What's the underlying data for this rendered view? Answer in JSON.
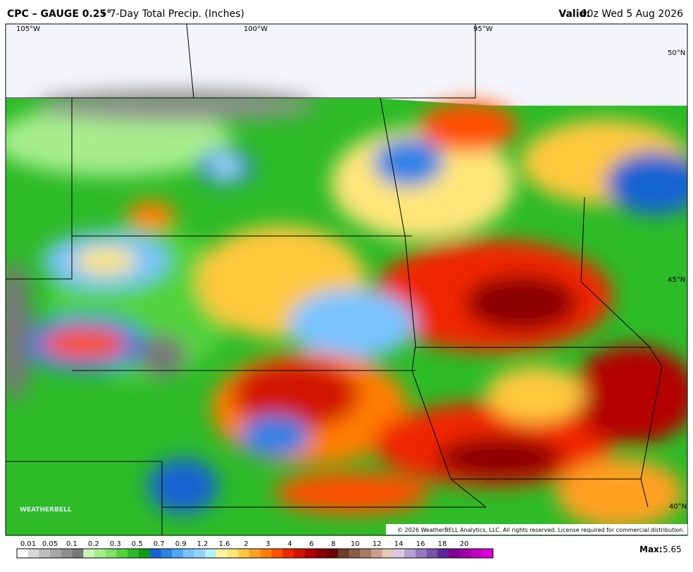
{
  "header": {
    "product": "CPC – GAUGE 0.25°",
    "subtitle": "• 7-Day Total Precip. (Inches)",
    "valid_label": "Valid:",
    "valid_value": "00z Wed 5 Aug 2026"
  },
  "map": {
    "lon_labels": [
      "105°W",
      "100°W",
      "95°W"
    ],
    "lat_labels": [
      "50°N",
      "45°N",
      "40°N"
    ],
    "logo": "WEATHERBELL",
    "copyright": "© 2026 WeatherBELL Analytics, LLC. All rights reserved. License required for commercial distribution."
  },
  "legend": {
    "labels": [
      0.01,
      0.05,
      0.1,
      0.2,
      0.3,
      0.5,
      0.7,
      0.9,
      1.2,
      1.6,
      2,
      3,
      4,
      6,
      8,
      10,
      12,
      14,
      16,
      18,
      20
    ],
    "colors": [
      "#ffffff",
      "#d9d9d9",
      "#bdbdbd",
      "#a6a6a6",
      "#8f8f8f",
      "#787878",
      "#c8f5b4",
      "#a6ee8c",
      "#7ee264",
      "#52d23c",
      "#2dbb28",
      "#159a14",
      "#1464d2",
      "#2d82e6",
      "#50a5f5",
      "#78c3ff",
      "#96d2fa",
      "#b4f0fa",
      "#fff5a0",
      "#ffe678",
      "#ffc83c",
      "#ffa020",
      "#ff7d00",
      "#ff5000",
      "#f02800",
      "#d21400",
      "#b40000",
      "#8c0000",
      "#6e0000",
      "#6e3c28",
      "#8c5a46",
      "#aa7864",
      "#c8a08c",
      "#e6c8b4",
      "#dcc8e6",
      "#b4a0d2",
      "#9678be",
      "#7850aa",
      "#5a2896",
      "#820096",
      "#a000aa",
      "#be00be",
      "#dc00dc"
    ],
    "max_label": "Max:",
    "max_value": 5.65
  }
}
